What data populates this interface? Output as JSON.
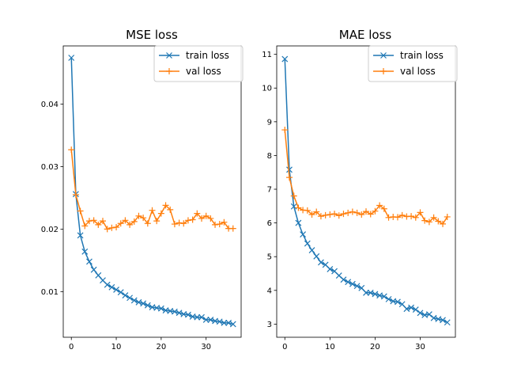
{
  "chart_data": [
    {
      "type": "line",
      "title": "MSE loss",
      "xlabel": "",
      "ylabel": "",
      "xlim": [
        -1.8,
        37.8
      ],
      "ylim": [
        0.0027,
        0.0493
      ],
      "xticks": [
        0,
        10,
        20,
        30
      ],
      "yticks": [
        0.01,
        0.02,
        0.03,
        0.04
      ],
      "xtick_labels": [
        "0",
        "10",
        "20",
        "30"
      ],
      "ytick_labels": [
        "0.01",
        "0.02",
        "0.03",
        "0.04"
      ],
      "legend_position": "upper-right",
      "grid": false,
      "series": [
        {
          "name": "train loss",
          "color": "#1f77b4",
          "marker": "x",
          "x": [
            0,
            1,
            2,
            3,
            4,
            5,
            6,
            7,
            8,
            9,
            10,
            11,
            12,
            13,
            14,
            15,
            16,
            17,
            18,
            19,
            20,
            21,
            22,
            23,
            24,
            25,
            26,
            27,
            28,
            29,
            30,
            31,
            32,
            33,
            34,
            35,
            36
          ],
          "y": [
            0.0474,
            0.0256,
            0.019,
            0.0164,
            0.0148,
            0.0135,
            0.0126,
            0.0118,
            0.0111,
            0.0107,
            0.0103,
            0.0099,
            0.0094,
            0.009,
            0.0086,
            0.0083,
            0.0081,
            0.0078,
            0.0075,
            0.0074,
            0.0073,
            0.007,
            0.0069,
            0.0068,
            0.0066,
            0.0064,
            0.0063,
            0.006,
            0.0059,
            0.0059,
            0.0055,
            0.0055,
            0.0053,
            0.0052,
            0.005,
            0.005,
            0.0048
          ]
        },
        {
          "name": "val loss",
          "color": "#ff7f0e",
          "marker": "+",
          "x": [
            0,
            1,
            2,
            3,
            4,
            5,
            6,
            7,
            8,
            9,
            10,
            11,
            12,
            13,
            14,
            15,
            16,
            17,
            18,
            19,
            20,
            21,
            22,
            23,
            24,
            25,
            26,
            27,
            28,
            29,
            30,
            31,
            32,
            33,
            34,
            35,
            36
          ],
          "y": [
            0.0327,
            0.0255,
            0.0229,
            0.0205,
            0.0213,
            0.0214,
            0.0207,
            0.0213,
            0.02,
            0.0202,
            0.0203,
            0.0209,
            0.0214,
            0.0207,
            0.0212,
            0.0221,
            0.0218,
            0.0209,
            0.023,
            0.0213,
            0.0225,
            0.0238,
            0.0231,
            0.0208,
            0.021,
            0.0209,
            0.0214,
            0.0215,
            0.0225,
            0.0217,
            0.0221,
            0.0217,
            0.0207,
            0.0208,
            0.0211,
            0.0201,
            0.0201
          ]
        }
      ]
    },
    {
      "type": "line",
      "title": "MAE loss",
      "xlabel": "",
      "ylabel": "",
      "xlim": [
        -1.8,
        37.8
      ],
      "ylim": [
        2.61,
        11.25
      ],
      "xticks": [
        0,
        10,
        20,
        30
      ],
      "yticks": [
        3,
        4,
        5,
        6,
        7,
        8,
        9,
        10,
        11
      ],
      "xtick_labels": [
        "0",
        "10",
        "20",
        "30"
      ],
      "ytick_labels": [
        "3",
        "4",
        "5",
        "6",
        "7",
        "8",
        "9",
        "10",
        "11"
      ],
      "legend_position": "upper-right",
      "grid": false,
      "series": [
        {
          "name": "train loss",
          "color": "#1f77b4",
          "marker": "x",
          "x": [
            0,
            1,
            2,
            3,
            4,
            5,
            6,
            7,
            8,
            9,
            10,
            11,
            12,
            13,
            14,
            15,
            16,
            17,
            18,
            19,
            20,
            21,
            22,
            23,
            24,
            25,
            26,
            27,
            28,
            29,
            30,
            31,
            32,
            33,
            34,
            35,
            36
          ],
          "y": [
            10.86,
            7.58,
            6.49,
            6.0,
            5.66,
            5.39,
            5.19,
            5.01,
            4.83,
            4.76,
            4.63,
            4.57,
            4.44,
            4.32,
            4.25,
            4.19,
            4.13,
            4.07,
            3.93,
            3.93,
            3.89,
            3.85,
            3.82,
            3.74,
            3.68,
            3.66,
            3.59,
            3.45,
            3.49,
            3.43,
            3.33,
            3.27,
            3.29,
            3.18,
            3.15,
            3.12,
            3.05
          ]
        },
        {
          "name": "val loss",
          "color": "#ff7f0e",
          "marker": "+",
          "x": [
            0,
            1,
            2,
            3,
            4,
            5,
            6,
            7,
            8,
            9,
            10,
            11,
            12,
            13,
            14,
            15,
            16,
            17,
            18,
            19,
            20,
            21,
            22,
            23,
            24,
            25,
            26,
            27,
            28,
            29,
            30,
            31,
            32,
            33,
            34,
            35,
            36
          ],
          "y": [
            8.76,
            7.35,
            6.8,
            6.45,
            6.38,
            6.37,
            6.25,
            6.33,
            6.2,
            6.23,
            6.25,
            6.27,
            6.22,
            6.27,
            6.3,
            6.33,
            6.3,
            6.25,
            6.34,
            6.26,
            6.35,
            6.52,
            6.42,
            6.16,
            6.18,
            6.17,
            6.23,
            6.19,
            6.2,
            6.16,
            6.31,
            6.07,
            6.03,
            6.16,
            6.05,
            5.97,
            6.18
          ]
        }
      ]
    }
  ]
}
